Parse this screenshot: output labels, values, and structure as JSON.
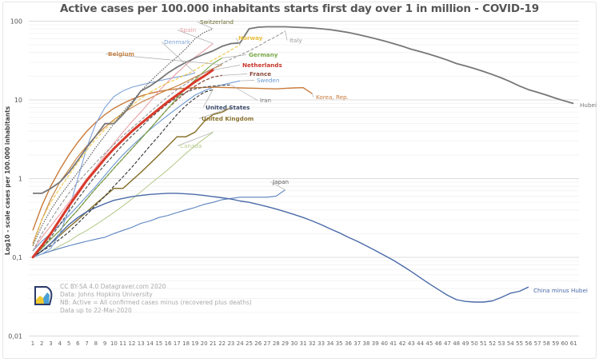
{
  "chart_data": {
    "type": "line",
    "title": "Active cases per 100.000 inhabitants starts first day over 1 in million - COVID-19",
    "xlabel": "",
    "ylabel": "Log10 - scale cases per 100.000 inhabitants",
    "yscale": "log10",
    "ylim": [
      0.01,
      100
    ],
    "xlim": [
      1,
      61
    ],
    "y_ticks": [
      "0,01",
      "0,1",
      "1",
      "10",
      "100"
    ],
    "y_tick_values": [
      0.01,
      0.1,
      1,
      10,
      100
    ],
    "x_ticks": [
      1,
      2,
      3,
      4,
      5,
      6,
      7,
      8,
      9,
      10,
      11,
      12,
      13,
      14,
      15,
      16,
      17,
      18,
      19,
      20,
      21,
      22,
      23,
      24,
      25,
      26,
      27,
      28,
      29,
      30,
      31,
      32,
      33,
      34,
      35,
      36,
      37,
      38,
      39,
      40,
      41,
      42,
      43,
      44,
      45,
      46,
      47,
      48,
      49,
      50,
      51,
      52,
      53,
      54,
      55,
      56,
      57,
      58,
      59,
      60,
      61
    ],
    "grid": true,
    "legend": "inline labels at line ends",
    "series": [
      {
        "name": "Hubei",
        "color": "#777777",
        "dash": "solid",
        "width": 1.8,
        "values": [
          0.65,
          0.65,
          0.75,
          0.9,
          1.2,
          1.7,
          2.5,
          3.5,
          5,
          5,
          6.5,
          9,
          13,
          15,
          18,
          22,
          26,
          30,
          34,
          38,
          42,
          48,
          52,
          53,
          80,
          84,
          85,
          85,
          85,
          84,
          83,
          82,
          80,
          78,
          75,
          72,
          68,
          64,
          60,
          56,
          52,
          48,
          44,
          41,
          38,
          35,
          32,
          29,
          27,
          25,
          23,
          21,
          19,
          17,
          15,
          13.5,
          12.5,
          11.5,
          10.5,
          9.7,
          9
        ]
      },
      {
        "name": "China minus Hubei",
        "color": "#4a6aa8",
        "dash": "solid",
        "width": 1.4,
        "values": [
          0.1,
          0.12,
          0.15,
          0.2,
          0.26,
          0.32,
          0.38,
          0.43,
          0.48,
          0.53,
          0.56,
          0.59,
          0.61,
          0.63,
          0.64,
          0.65,
          0.65,
          0.64,
          0.63,
          0.61,
          0.59,
          0.57,
          0.55,
          0.52,
          0.5,
          0.47,
          0.44,
          0.41,
          0.38,
          0.35,
          0.32,
          0.29,
          0.26,
          0.23,
          0.205,
          0.18,
          0.16,
          0.14,
          0.122,
          0.106,
          0.092,
          0.078,
          0.066,
          0.055,
          0.046,
          0.039,
          0.033,
          0.029,
          0.0275,
          0.027,
          0.027,
          0.028,
          0.031,
          0.035,
          0.037,
          0.042
        ]
      },
      {
        "name": "Japan",
        "color": "#5b83c0",
        "dash": "solid",
        "width": 1.1,
        "values": [
          0.1,
          0.11,
          0.12,
          0.13,
          0.14,
          0.15,
          0.16,
          0.17,
          0.18,
          0.2,
          0.22,
          0.24,
          0.27,
          0.29,
          0.32,
          0.34,
          0.37,
          0.4,
          0.43,
          0.47,
          0.5,
          0.54,
          0.56,
          0.58,
          0.58,
          0.58,
          0.58,
          0.6,
          0.72
        ]
      },
      {
        "name": "Italy",
        "color": "#999999",
        "dash": "dashed",
        "width": 1.1,
        "values": [
          0.12,
          0.2,
          0.3,
          0.45,
          0.65,
          0.9,
          1.2,
          1.6,
          2.1,
          2.7,
          3.5,
          4.4,
          5.5,
          7,
          8.8,
          11,
          13.5,
          16,
          19,
          22,
          25,
          29,
          33,
          37,
          42,
          48,
          56,
          64,
          75
        ]
      },
      {
        "name": "Switzerland",
        "color": "#555555",
        "dash": "dotted",
        "width": 1.1,
        "values": [
          0.14,
          0.25,
          0.4,
          0.6,
          0.85,
          1.2,
          1.7,
          2.5,
          3.5,
          5,
          7,
          9.5,
          13,
          17,
          22,
          28,
          35,
          45,
          60,
          72,
          80
        ]
      },
      {
        "name": "Spain",
        "color": "#e8a0a8",
        "dash": "solid",
        "width": 1.1,
        "values": [
          0.12,
          0.18,
          0.25,
          0.35,
          0.5,
          0.7,
          1.0,
          1.4,
          2.0,
          2.8,
          3.9,
          5.3,
          7,
          9.5,
          13,
          17,
          22,
          28,
          35,
          42,
          52
        ]
      },
      {
        "name": "Norway",
        "color": "#f0d060",
        "dash": "dashed",
        "width": 1.3,
        "values": [
          0.14,
          0.3,
          0.5,
          0.75,
          1.1,
          1.6,
          2.3,
          3.2,
          4.2,
          5.4,
          6.8,
          8.5,
          10.5,
          12.5,
          14.5,
          16.5,
          18.5,
          21,
          24,
          28,
          32,
          37,
          43,
          50
        ]
      },
      {
        "name": "Denmark",
        "color": "#7fa3d8",
        "dash": "solid",
        "width": 1.1,
        "values": [
          0.1,
          0.11,
          0.13,
          0.2,
          0.4,
          1.0,
          2.5,
          5,
          8,
          11,
          13,
          14.5,
          15.5,
          16.5,
          17.5,
          18.5,
          19.5,
          20.5,
          22
        ]
      },
      {
        "name": "Belgium",
        "color": "#c8874a",
        "dash": "solid",
        "width": 1.2,
        "values": [
          0.15,
          0.3,
          0.55,
          0.9,
          1.3,
          1.9,
          2.6,
          3.5,
          4.5,
          5.6,
          6.8,
          8,
          9.3,
          10.5,
          12,
          13.5,
          15,
          17,
          19.5,
          22,
          25,
          28
        ]
      },
      {
        "name": "Germany",
        "color": "#7aa84a",
        "dash": "solid",
        "width": 1.1,
        "values": [
          0.1,
          0.13,
          0.17,
          0.22,
          0.3,
          0.4,
          0.55,
          0.75,
          1.0,
          1.35,
          1.8,
          2.4,
          3.2,
          4.3,
          5.8,
          7.8,
          10.5,
          14,
          18,
          23,
          29,
          34
        ]
      },
      {
        "name": "Netherlands",
        "color": "#d93a2b",
        "dash": "solid",
        "width": 3,
        "values": [
          0.1,
          0.14,
          0.2,
          0.3,
          0.45,
          0.65,
          0.95,
          1.3,
          1.8,
          2.4,
          3.1,
          4.0,
          5.0,
          6.2,
          7.7,
          9.5,
          11.5,
          14,
          17,
          20,
          24
        ]
      },
      {
        "name": "France",
        "color": "#8a4a3a",
        "dash": "dashed",
        "width": 1.3,
        "values": [
          0.1,
          0.13,
          0.17,
          0.22,
          0.3,
          0.4,
          0.55,
          0.75,
          1.0,
          1.35,
          1.8,
          2.4,
          3.2,
          4.3,
          5.8,
          7.8,
          10,
          12.5,
          15,
          17.5,
          19.5,
          20.5
        ]
      },
      {
        "name": "Sweden",
        "color": "#6a98d0",
        "dash": "solid",
        "width": 1.1,
        "values": [
          0.12,
          0.16,
          0.2,
          0.26,
          0.34,
          0.45,
          0.6,
          0.8,
          1.1,
          1.5,
          2.0,
          2.6,
          3.3,
          4.2,
          5.2,
          6.4,
          7.8,
          9.5,
          11.5,
          13,
          14.5,
          15.5,
          16.5,
          17.5
        ]
      },
      {
        "name": "Iran",
        "color": "#555555",
        "dash": "dashed",
        "width": 1.2,
        "values": [
          0.1,
          0.13,
          0.18,
          0.26,
          0.38,
          0.55,
          0.78,
          1.1,
          1.5,
          2.0,
          2.7,
          3.5,
          4.5,
          5.8,
          7.3,
          9,
          10.8,
          12.5,
          13.8,
          14.5,
          15,
          15.3,
          15.5
        ]
      },
      {
        "name": "Korea, Rep.",
        "color": "#c87a3a",
        "dash": "solid",
        "width": 1.4,
        "values": [
          0.22,
          0.45,
          0.8,
          1.3,
          2.0,
          2.9,
          4.0,
          5.2,
          6.5,
          7.8,
          9,
          10.2,
          11.2,
          12.1,
          12.8,
          13.4,
          13.8,
          14.1,
          14.3,
          14.4,
          14.5,
          14.4,
          14.3,
          14.2,
          14.1,
          14.0,
          13.9,
          13.8,
          14.0,
          14.2,
          14.3,
          12.0
        ]
      },
      {
        "name": "United States",
        "color": "#333333",
        "dash": "dashed",
        "width": 1.1,
        "values": [
          0.1,
          0.12,
          0.14,
          0.17,
          0.21,
          0.27,
          0.35,
          0.46,
          0.6,
          0.8,
          1.05,
          1.4,
          1.9,
          2.6,
          3.5,
          4.8,
          6.5,
          8.5,
          10.5,
          12.5,
          13.5
        ]
      },
      {
        "name": "United Kingdom",
        "color": "#8a7430",
        "dash": "solid",
        "width": 1.5,
        "values": [
          0.1,
          0.12,
          0.15,
          0.19,
          0.24,
          0.3,
          0.38,
          0.48,
          0.6,
          0.75,
          0.75,
          0.95,
          1.2,
          1.55,
          2.0,
          2.6,
          3.4,
          3.4,
          3.9,
          5.3,
          6.5,
          7,
          8
        ]
      },
      {
        "name": "Canada",
        "color": "#b8cc90",
        "dash": "solid",
        "width": 1.1,
        "values": [
          0.1,
          0.11,
          0.12,
          0.14,
          0.16,
          0.19,
          0.22,
          0.26,
          0.31,
          0.37,
          0.45,
          0.55,
          0.68,
          0.85,
          1.05,
          1.3,
          1.65,
          2.1,
          2.6,
          3.2,
          3.9
        ]
      }
    ],
    "labels": [
      {
        "series": "Switzerland",
        "text": "Switzerland",
        "color": "#6d6a30"
      },
      {
        "series": "Spain",
        "text": "Spain",
        "color": "#e8a0a8"
      },
      {
        "series": "Denmark",
        "text": "Denmark",
        "color": "#7fa3d8"
      },
      {
        "series": "Norway",
        "text": "Norway",
        "color": "#e8c040"
      },
      {
        "series": "Italy",
        "text": "Italy",
        "color": "#999999"
      },
      {
        "series": "Belgium",
        "text": "Belgium",
        "color": "#c8874a"
      },
      {
        "series": "Germany",
        "text": "Germany",
        "color": "#7aa84a"
      },
      {
        "series": "Netherlands",
        "text": "Netherlands",
        "color": "#c8362a"
      },
      {
        "series": "France",
        "text": "France",
        "color": "#8a4a3a"
      },
      {
        "series": "Sweden",
        "text": "Sweden",
        "color": "#6a98d0"
      },
      {
        "series": "Iran",
        "text": "Iran",
        "color": "#777777"
      },
      {
        "series": "Korea, Rep.",
        "text": "Korea, Rep.",
        "color": "#c87a3a"
      },
      {
        "series": "United States",
        "text": "United States",
        "color": "#3a4a6a"
      },
      {
        "series": "United Kingdom",
        "text": "United Kingdom",
        "color": "#8a7430"
      },
      {
        "series": "Canada",
        "text": "Canada",
        "color": "#b8cc90"
      },
      {
        "series": "Japan",
        "text": "Japan",
        "color": "#555555"
      },
      {
        "series": "Hubei",
        "text": "Hubei",
        "color": "#777777"
      },
      {
        "series": "China minus Hubei",
        "text": "China minus Hubei",
        "color": "#4a6aa8"
      }
    ],
    "annotations": [
      "CC BY-SA 4.0  Datagraver.com 2020",
      "Data: Johns Hopkins University",
      "NB: Active = All confirmed cases minus (recovered plus deaths)",
      "Data up to 22-Mar-2020"
    ]
  }
}
